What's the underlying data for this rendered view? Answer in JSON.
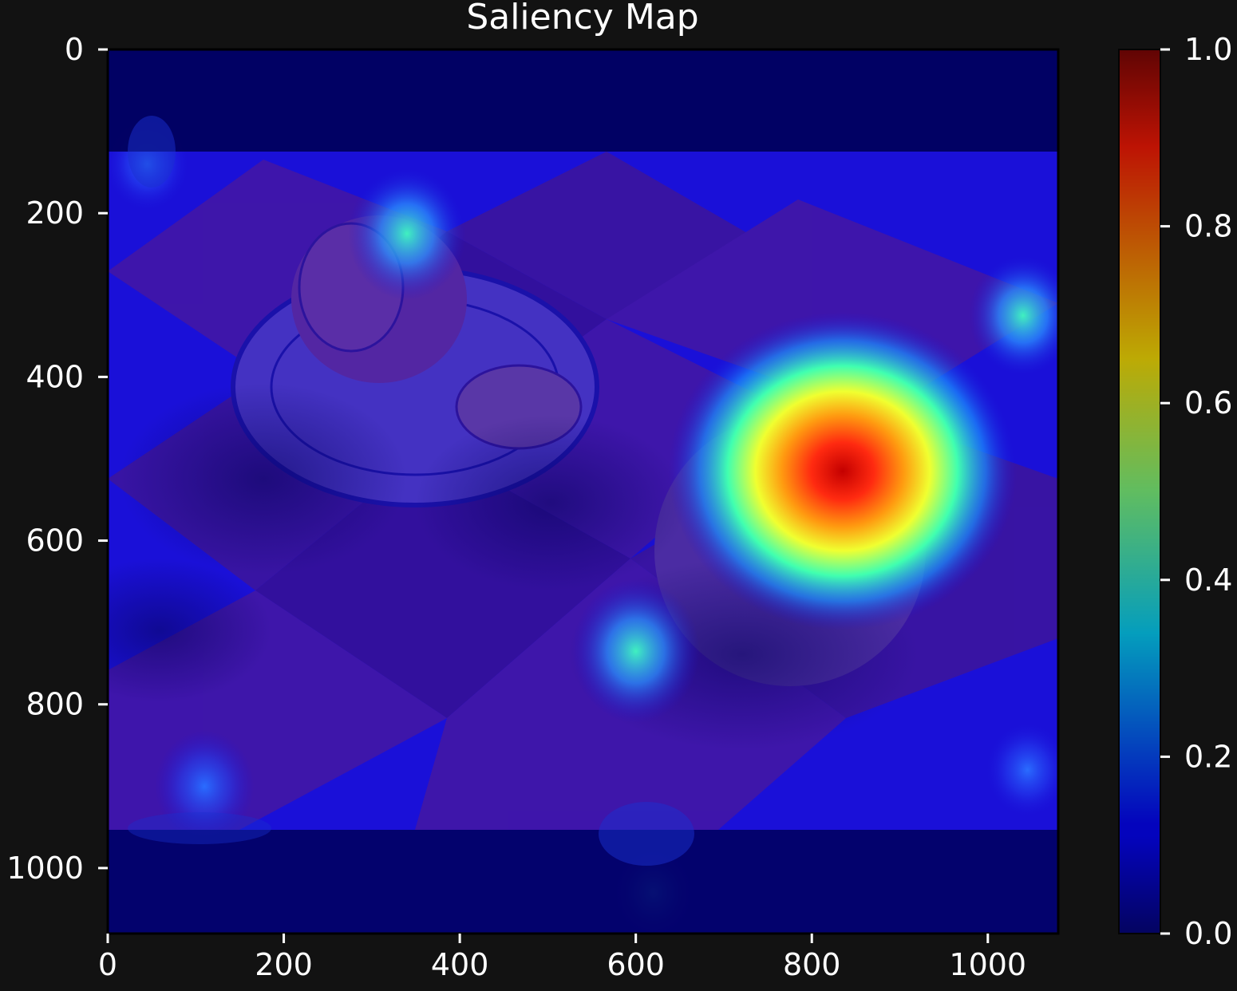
{
  "chart_data": {
    "type": "heatmap",
    "title": "Saliency Map",
    "xlabel": "",
    "ylabel": "",
    "xlim": [
      0,
      1080
    ],
    "ylim": [
      1080,
      0
    ],
    "x_ticks": [
      0,
      200,
      400,
      600,
      800,
      1000
    ],
    "y_ticks": [
      0,
      200,
      400,
      600,
      800,
      1000
    ],
    "colorbar": {
      "colormap": "jet",
      "range": [
        0.0,
        1.0
      ],
      "ticks": [
        "0.0",
        "0.2",
        "0.4",
        "0.6",
        "0.8",
        "1.0"
      ]
    },
    "hotspots": [
      {
        "x": 835,
        "y": 515,
        "value": 1.0
      },
      {
        "x": 600,
        "y": 735,
        "value": 0.4
      },
      {
        "x": 340,
        "y": 225,
        "value": 0.35
      },
      {
        "x": 1040,
        "y": 325,
        "value": 0.3
      },
      {
        "x": 110,
        "y": 900,
        "value": 0.25
      },
      {
        "x": 45,
        "y": 140,
        "value": 0.18
      },
      {
        "x": 620,
        "y": 1030,
        "value": 0.15
      },
      {
        "x": 1045,
        "y": 880,
        "value": 0.18
      }
    ],
    "background_image": "still life: saucer with cut citrus, whole fruit on checkered cloth",
    "colors": {
      "page_background": "#121212",
      "tick_color": "#ffffff",
      "heatmap_base": "#1a10d8",
      "padding_band": "#00005a"
    }
  }
}
